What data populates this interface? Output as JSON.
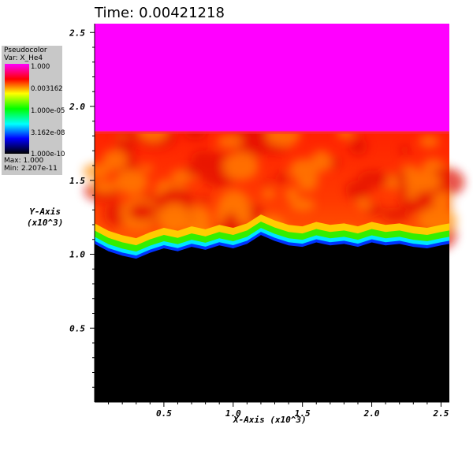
{
  "header": {
    "time_label": "Time:",
    "time_value": "0.00421218"
  },
  "legend": {
    "title": "Pseudocolor",
    "var_line": "Var: X_He4",
    "ticks": [
      "1.000",
      "0.003162",
      "1.000e-05",
      "3.162e-08",
      "1.000e-10"
    ],
    "max_line": "Max: 1.000",
    "min_line": "Min: 2.207e-11",
    "colormap": [
      "#ff00ff",
      "#ff0000",
      "#ffff00",
      "#00ff00",
      "#00ffff",
      "#0000ff",
      "#000000"
    ]
  },
  "chart_data": {
    "type": "heatmap",
    "title": "Time: 0.00421218",
    "xlabel": "X-Axis (x10^3)",
    "ylabel_line1": "Y-Axis",
    "ylabel_line2": "(x10^3)",
    "xlim": [
      0.0,
      2.56
    ],
    "ylim": [
      0.0,
      2.56
    ],
    "x_ticks": [
      "0.5",
      "1.0",
      "1.5",
      "2.0",
      "2.5"
    ],
    "x_tick_values": [
      0.5,
      1.0,
      1.5,
      2.0,
      2.5
    ],
    "y_ticks": [
      "0.5",
      "1.0",
      "1.5",
      "2.0",
      "2.5"
    ],
    "y_tick_values": [
      0.5,
      1.0,
      1.5,
      2.0,
      2.5
    ],
    "variable": "X_He4",
    "colorbar_scale": "log",
    "color_range": [
      1e-10,
      1.0
    ],
    "data_min": 2.207e-11,
    "data_max": 1.0,
    "regions": [
      {
        "name": "pure-he4",
        "y_from": 1.83,
        "y_to": 2.56,
        "value": 1.0,
        "color": "#ff00ff"
      },
      {
        "name": "mixing-layer",
        "y_from": 1.08,
        "y_to": 1.83,
        "value": 0.003162,
        "color": "#ff3300"
      },
      {
        "name": "no-he4",
        "y_from": 0.0,
        "y_to": 1.08,
        "value": 1e-10,
        "color": "#000000"
      }
    ],
    "interface_profile": {
      "x": [
        0.0,
        0.1,
        0.2,
        0.3,
        0.4,
        0.5,
        0.6,
        0.7,
        0.8,
        0.9,
        1.0,
        1.1,
        1.2,
        1.3,
        1.4,
        1.5,
        1.6,
        1.7,
        1.8,
        1.9,
        2.0,
        2.1,
        2.2,
        2.3,
        2.4,
        2.5,
        2.56
      ],
      "y": [
        1.07,
        1.02,
        0.99,
        0.97,
        1.01,
        1.04,
        1.02,
        1.05,
        1.03,
        1.06,
        1.04,
        1.07,
        1.13,
        1.09,
        1.06,
        1.05,
        1.08,
        1.06,
        1.07,
        1.05,
        1.08,
        1.06,
        1.07,
        1.05,
        1.04,
        1.06,
        1.07
      ]
    }
  }
}
